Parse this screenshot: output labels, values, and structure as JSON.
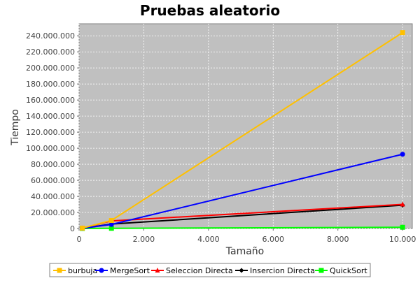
{
  "chart_data": {
    "type": "line",
    "title": "Pruebas aleatorio",
    "xlabel": "Tamaño",
    "ylabel": "Tiempo",
    "xlim": [
      0,
      10300
    ],
    "ylim": [
      0,
      255000000
    ],
    "x_ticks": [
      0,
      2000,
      4000,
      6000,
      8000,
      10000
    ],
    "x_tick_labels": [
      "0",
      "2.000",
      "4.000",
      "6.000",
      "8.000",
      "10.000"
    ],
    "y_ticks": [
      0,
      20000000,
      40000000,
      60000000,
      80000000,
      100000000,
      120000000,
      140000000,
      160000000,
      180000000,
      200000000,
      220000000,
      240000000
    ],
    "y_tick_labels": [
      "0",
      "20.000.000",
      "40.000.000",
      "60.000.000",
      "80.000.000",
      "100.000.000",
      "120.000.000",
      "140.000.000",
      "160.000.000",
      "180.000.000",
      "200.000.000",
      "220.000.000",
      "240.000.000"
    ],
    "grid": true,
    "legend_position": "bottom",
    "plot_background": "#c0c0c0",
    "series": [
      {
        "name": "burbuja",
        "color": "#ffc000",
        "marker": "square",
        "x": [
          100,
          1000,
          10000
        ],
        "y": [
          500000,
          10000000,
          244000000
        ]
      },
      {
        "name": "MergeSort",
        "color": "#0000ff",
        "marker": "circle",
        "x": [
          100,
          1000,
          10000
        ],
        "y": [
          300000,
          5000000,
          92500000
        ]
      },
      {
        "name": "Seleccion Directa",
        "color": "#ff0000",
        "marker": "triangle",
        "x": [
          100,
          1000,
          10000
        ],
        "y": [
          300000,
          9500000,
          30000000
        ]
      },
      {
        "name": "Insercion Directa",
        "color": "#000000",
        "marker": "diamond",
        "x": [
          100,
          1000,
          10000
        ],
        "y": [
          200000,
          5500000,
          29000000
        ]
      },
      {
        "name": "QuickSort",
        "color": "#00ff00",
        "marker": "square",
        "x": [
          100,
          1000,
          10000
        ],
        "y": [
          50000,
          200000,
          1500000
        ]
      }
    ]
  }
}
